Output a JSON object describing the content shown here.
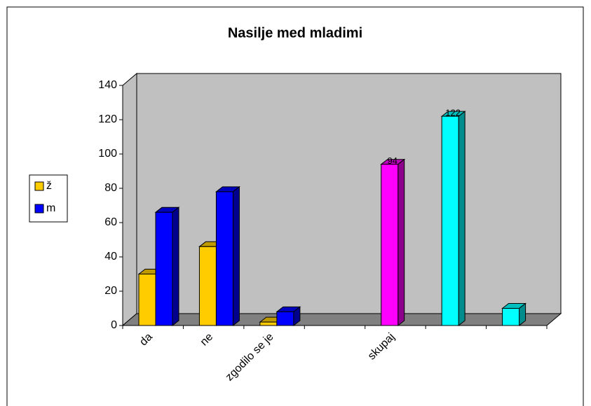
{
  "chart_data": {
    "type": "bar3d",
    "title": "Nasilje med mladimi",
    "categories": [
      "da",
      "ne",
      "zgodilo se je",
      null,
      "skupaj",
      null,
      null
    ],
    "series": [
      {
        "name": "ž",
        "color": "#ffcc00",
        "point_colors": [
          "#ffcc00",
          "#ffcc00",
          "#ffcc00",
          null,
          "#ff00ff",
          "#00ffff",
          "#00ffff"
        ],
        "values": [
          30,
          46,
          2,
          null,
          94,
          122,
          10
        ],
        "value_labels": [
          null,
          null,
          null,
          null,
          "94",
          "122",
          null
        ]
      },
      {
        "name": "m",
        "color": "#0000ff",
        "values": [
          66,
          78,
          8,
          null,
          null,
          null,
          null
        ]
      }
    ],
    "ylim": [
      0,
      140
    ],
    "yticks": [
      0,
      20,
      40,
      60,
      80,
      100,
      120,
      140
    ],
    "legend": "left"
  }
}
